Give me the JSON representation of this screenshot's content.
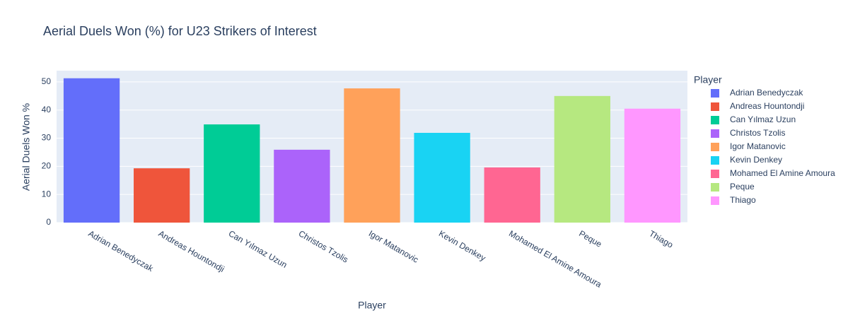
{
  "chart_data": {
    "type": "bar",
    "title": "Aerial Duels Won (%) for U23 Strikers of Interest",
    "x_label": "Player",
    "y_label": "Aerial Duels Won %",
    "legend_title": "Player",
    "categories": [
      "Adrian Benedyczak",
      "Andreas Hountondji",
      "Can Yılmaz Uzun",
      "Christos Tzolis",
      "Igor Matanovic",
      "Kevin Denkey",
      "Mohamed El Amine Amoura",
      "Peque",
      "Thiago"
    ],
    "values": [
      51.3,
      19.3,
      34.9,
      25.9,
      47.7,
      31.9,
      19.6,
      45.0,
      40.5
    ],
    "colors": [
      "#636efa",
      "#ef553b",
      "#00cc96",
      "#ab63fa",
      "#ffa15a",
      "#19d3f3",
      "#ff6692",
      "#b6e880",
      "#ff97ff"
    ],
    "ylim": [
      0,
      54
    ],
    "yticks": [
      0,
      10,
      20,
      30,
      40,
      50
    ],
    "grid": true,
    "legend": "right"
  }
}
